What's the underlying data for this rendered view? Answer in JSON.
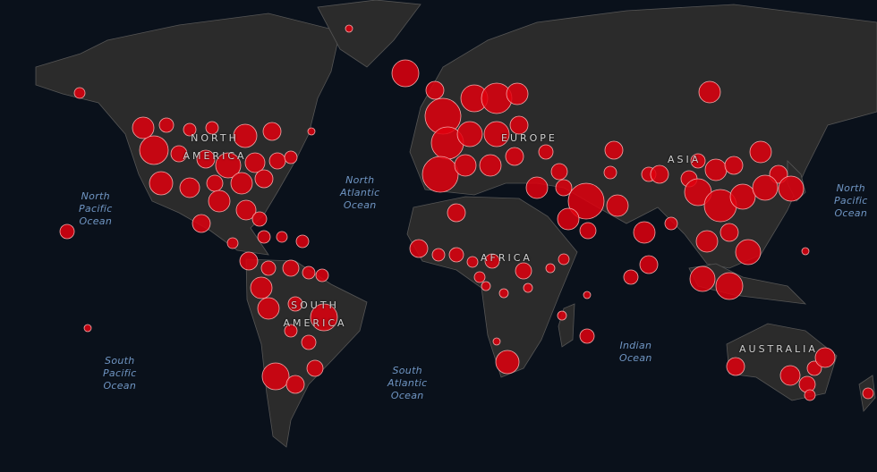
{
  "map": {
    "colors": {
      "ocean": "#0a111b",
      "land": "#2b2b2b",
      "border": "#5a5a5a",
      "marker": "#e0000e",
      "marker_stroke": "#f2a8a8"
    },
    "oceans": [
      {
        "id": "npo-left",
        "label": "North\nPacific\nOcean"
      },
      {
        "id": "nao",
        "label": "North\nAtlantic\nOcean"
      },
      {
        "id": "npo-right",
        "label": "North\nPacific\nOcean"
      },
      {
        "id": "spo",
        "label": "South\nPacific\nOcean"
      },
      {
        "id": "sao",
        "label": "South\nAtlantic\nOcean"
      },
      {
        "id": "io",
        "label": "Indian\nOcean"
      }
    ],
    "continents": [
      {
        "id": "na",
        "label": "NORTH AMERICA"
      },
      {
        "id": "eu",
        "label": "EUROPE"
      },
      {
        "id": "as",
        "label": "ASIA"
      },
      {
        "id": "af",
        "label": "AFRICA"
      },
      {
        "id": "sa",
        "label": "SOUTH AMERICA"
      },
      {
        "id": "au",
        "label": "AUSTRALIA"
      }
    ],
    "marker_type": "case-count-circle"
  }
}
